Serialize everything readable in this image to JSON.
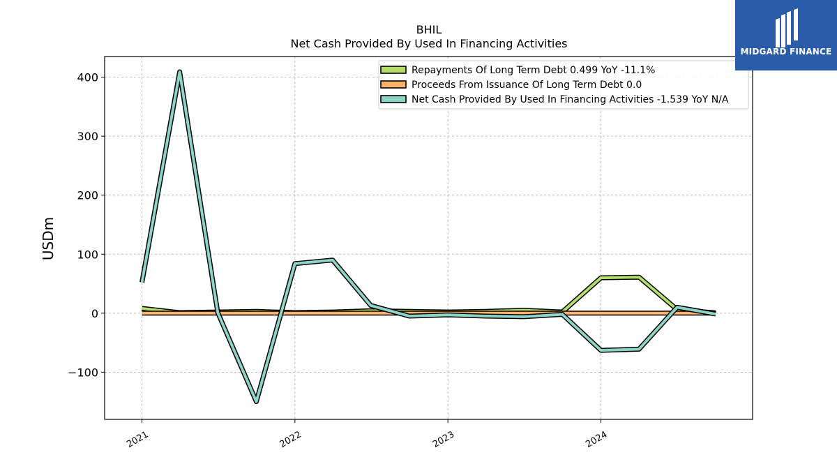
{
  "chart_data": {
    "type": "line",
    "title": "BHIL",
    "subtitle": "Net Cash Provided By Used In Financing Activities",
    "ylabel": "USDm",
    "xlabel": "",
    "ylim": [
      -180,
      435
    ],
    "xlim": [
      "2020-10-04",
      "2024-12-28"
    ],
    "yticks": [
      -100,
      0,
      100,
      200,
      300,
      400
    ],
    "ytick_labels": [
      "−100",
      "0",
      "100",
      "200",
      "300",
      "400"
    ],
    "xticks": [
      "2021-01-01",
      "2022-01-01",
      "2023-01-01",
      "2024-01-01"
    ],
    "xtick_labels": [
      "2021",
      "2022",
      "2023",
      "2024"
    ],
    "x": [
      "2021-01-01",
      "2021-04-01",
      "2021-07-01",
      "2021-10-01",
      "2022-01-01",
      "2022-04-01",
      "2022-07-01",
      "2022-10-01",
      "2023-01-01",
      "2023-04-01",
      "2023-07-01",
      "2023-10-01",
      "2024-01-01",
      "2024-04-01",
      "2024-07-01",
      "2024-10-01"
    ],
    "grid": true,
    "legend_position": "top-right",
    "series": [
      {
        "name": "Repayments Of Long Term Debt  0.499 YoY -11.1%",
        "color": "#b5de6b",
        "values": [
          8,
          1,
          2,
          3,
          1,
          2,
          4,
          3,
          2,
          3,
          5,
          2,
          60,
          61,
          6,
          0.5
        ]
      },
      {
        "name": "Proceeds From Issuance Of Long Term Debt  0.0",
        "color": "#ffb06b",
        "values": [
          0,
          0,
          0,
          0,
          0,
          0,
          0,
          0,
          0,
          0,
          0,
          0,
          0,
          0,
          0,
          0
        ]
      },
      {
        "name": "Net Cash Provided By Used In Financing Activities  -1.539 YoY N/A",
        "color": "#8dd3c7",
        "values": [
          52,
          409,
          1,
          -150,
          84,
          90,
          13,
          -5,
          -3,
          -5,
          -6,
          -2,
          -63,
          -61,
          10,
          -1.5
        ]
      }
    ]
  },
  "logo": {
    "text": "MIDGARD FINANCE"
  }
}
